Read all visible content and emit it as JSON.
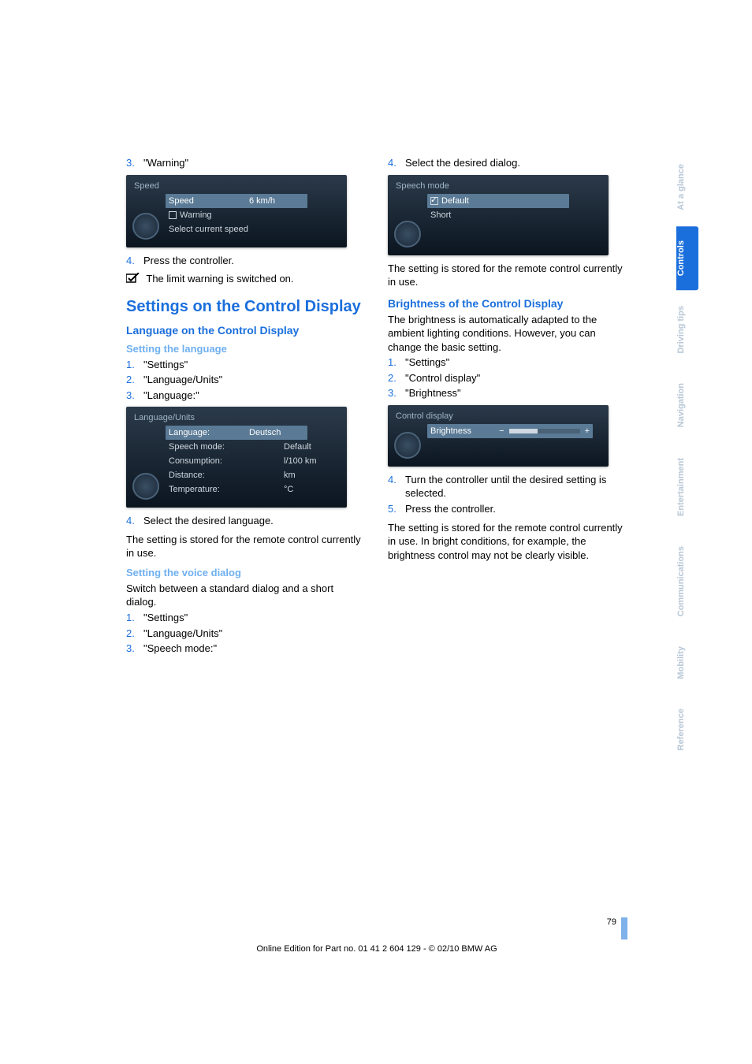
{
  "colors": {
    "link": "#1b6fdc",
    "sub": "#6fb0f0",
    "tab_muted": "#b8c7d6",
    "tab_active_bg": "#1b6fdc",
    "idrive_bg_top": "#2b3a4a",
    "idrive_bg_bottom": "#0b1520",
    "idrive_text": "#cfd8e0",
    "idrive_sel": "#5a7a95"
  },
  "left": {
    "step3": {
      "num": "3.",
      "text": "\"Warning\""
    },
    "speed_shot": {
      "title": "Speed",
      "rows": [
        {
          "label": "Speed",
          "value": "6 km/h",
          "selected": true
        },
        {
          "label": "Warning",
          "checkbox": true,
          "checked": false
        },
        {
          "label": "Select current speed"
        }
      ]
    },
    "step4": {
      "num": "4.",
      "text": "Press the controller."
    },
    "limit_line": "The limit warning is switched on.",
    "h1": "Settings on the Control Display",
    "h2_lang": "Language on the Control Display",
    "h3_setlang": "Setting the language",
    "setlang_steps": [
      {
        "num": "1.",
        "text": "\"Settings\""
      },
      {
        "num": "2.",
        "text": "\"Language/Units\""
      },
      {
        "num": "3.",
        "text": "\"Language:\""
      }
    ],
    "lang_shot": {
      "title": "Language/Units",
      "rows": [
        {
          "label": "Language:",
          "value": "Deutsch",
          "selected": true
        },
        {
          "label": "Speech mode:",
          "value": "Default"
        },
        {
          "label": "Consumption:",
          "value": "l/100 km"
        },
        {
          "label": "Distance:",
          "value": "km"
        },
        {
          "label": "Temperature:",
          "value": "°C"
        }
      ]
    },
    "lang_step4": {
      "num": "4.",
      "text": "Select the desired language."
    },
    "stored": "The setting is stored for the remote control currently in use.",
    "h3_voice": "Setting the voice dialog",
    "voice_intro": "Switch between a standard dialog and a short dialog.",
    "voice_steps": [
      {
        "num": "1.",
        "text": "\"Settings\""
      },
      {
        "num": "2.",
        "text": "\"Language/Units\""
      },
      {
        "num": "3.",
        "text": "\"Speech mode:\""
      }
    ]
  },
  "right": {
    "step4": {
      "num": "4.",
      "text": "Select the desired dialog."
    },
    "speech_shot": {
      "title": "Speech mode",
      "rows": [
        {
          "label": "Default",
          "check": true,
          "selected": true
        },
        {
          "label": "Short"
        }
      ]
    },
    "stored": "The setting is stored for the remote control currently in use.",
    "h2_bright": "Brightness of the Control Display",
    "bright_intro": "The brightness is automatically adapted to the ambient lighting conditions. However, you can change the basic setting.",
    "bright_steps": [
      {
        "num": "1.",
        "text": "\"Settings\""
      },
      {
        "num": "2.",
        "text": "\"Control display\""
      },
      {
        "num": "3.",
        "text": "\"Brightness\""
      }
    ],
    "bright_shot": {
      "title": "Control display",
      "slider_label": "Brightness",
      "slider_fill_pct": 40
    },
    "bright_after": [
      {
        "num": "4.",
        "text": "Turn the controller until the desired setting is selected."
      },
      {
        "num": "5.",
        "text": "Press the controller."
      }
    ],
    "bright_stored": "The setting is stored for the remote control currently in use. In bright conditions, for example, the brightness control may not be clearly visible."
  },
  "tabs": [
    {
      "label": "At a glance",
      "active": false
    },
    {
      "label": "Controls",
      "active": true
    },
    {
      "label": "Driving tips",
      "active": false
    },
    {
      "label": "Navigation",
      "active": false
    },
    {
      "label": "Entertainment",
      "active": false
    },
    {
      "label": "Communications",
      "active": false
    },
    {
      "label": "Mobility",
      "active": false
    },
    {
      "label": "Reference",
      "active": false
    }
  ],
  "footer": {
    "page": "79",
    "line": "Online Edition for Part no. 01 41 2 604 129 - © 02/10 BMW AG"
  }
}
